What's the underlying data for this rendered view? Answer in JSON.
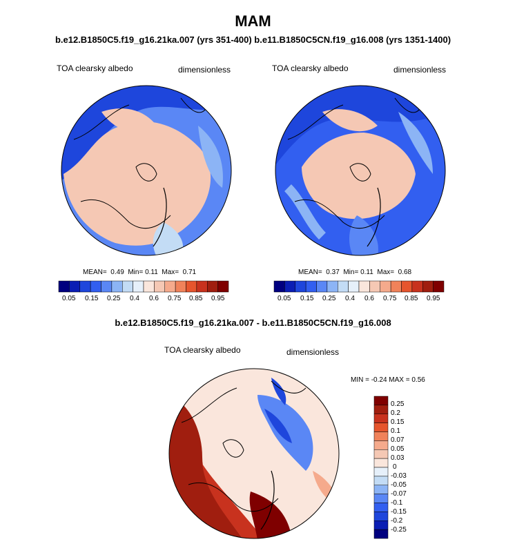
{
  "title": "MAM",
  "subtitle": "b.e12.B1850C5.f19_g16.21ka.007 (yrs 351-400) b.e11.B1850C5CN.f19_g16.008 (yrs 1351-1400)",
  "diff_title": "b.e12.B1850C5.f19_g16.21ka.007 - b.e11.B1850C5CN.f19_g16.008",
  "colors": {
    "blues": [
      "#00007f",
      "#0a1eb4",
      "#1e46dc",
      "#325ff0",
      "#5a87f5",
      "#8cb4f5",
      "#c3dcf5",
      "#e6f0fa"
    ],
    "reds": [
      "#fae6dc",
      "#f5c8b4",
      "#f5aa8c",
      "#f0825a",
      "#e6552d",
      "#c8321e",
      "#a01e0f",
      "#7f0000"
    ],
    "land_line": "#000000"
  },
  "panels": [
    {
      "field_label": "TOA clearsky albedo",
      "units_label": "dimensionless",
      "stats": {
        "mean_label": "MEAN=",
        "mean": "0.49",
        "min_label": "Min=",
        "min": "0.11",
        "max_label": "Max=",
        "max": "0.71"
      },
      "colorbar_ticks": [
        "0.05",
        "0.15",
        "0.25",
        "0.4",
        "0.6",
        "0.75",
        "0.85",
        "0.95"
      ]
    },
    {
      "field_label": "TOA clearsky albedo",
      "units_label": "dimensionless",
      "stats": {
        "mean_label": "MEAN=",
        "mean": "0.37",
        "min_label": "Min=",
        "min": "0.11",
        "max_label": "Max=",
        "max": "0.68"
      },
      "colorbar_ticks": [
        "0.05",
        "0.15",
        "0.25",
        "0.4",
        "0.6",
        "0.75",
        "0.85",
        "0.95"
      ]
    }
  ],
  "diff_panel": {
    "field_label": "TOA clearsky albedo",
    "units_label": "dimensionless",
    "minmax_text": "MIN =  -0.24 MAX =   0.56",
    "colorbar_ticks": [
      "0.25",
      "0.2",
      "0.15",
      "0.1",
      "0.07",
      "0.05",
      "0.03",
      "0",
      "-0.03",
      "-0.05",
      "-0.07",
      "-0.1",
      "-0.15",
      "-0.2",
      "-0.25"
    ]
  },
  "chart_data": [
    {
      "type": "heatmap",
      "projection": "north polar stereographic",
      "title": "TOA clearsky albedo",
      "units": "dimensionless",
      "mean": 0.49,
      "min": 0.11,
      "max": 0.71,
      "levels": [
        0.05,
        0.15,
        0.25,
        0.4,
        0.6,
        0.75,
        0.85,
        0.95
      ],
      "legend": "bottom"
    },
    {
      "type": "heatmap",
      "projection": "north polar stereographic",
      "title": "TOA clearsky albedo",
      "units": "dimensionless",
      "mean": 0.37,
      "min": 0.11,
      "max": 0.68,
      "levels": [
        0.05,
        0.15,
        0.25,
        0.4,
        0.6,
        0.75,
        0.85,
        0.95
      ],
      "legend": "bottom"
    },
    {
      "type": "heatmap",
      "projection": "north polar stereographic",
      "title": "TOA clearsky albedo difference",
      "units": "dimensionless",
      "min": -0.24,
      "max": 0.56,
      "levels": [
        -0.25,
        -0.2,
        -0.15,
        -0.1,
        -0.07,
        -0.05,
        -0.03,
        0,
        0.03,
        0.05,
        0.07,
        0.1,
        0.15,
        0.2,
        0.25
      ],
      "legend": "right"
    }
  ]
}
